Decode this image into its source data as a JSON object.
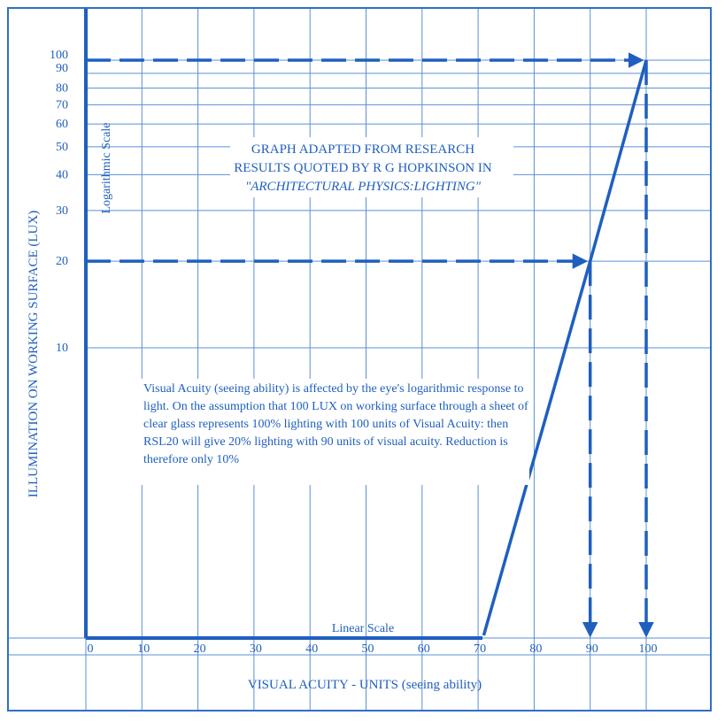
{
  "chart_data": {
    "type": "line",
    "title_lines": [
      "GRAPH ADAPTED FROM RESEARCH",
      "RESULTS QUOTED BY R G HOPKINSON IN",
      "\"ARCHITECTURAL PHYSICS:LIGHTING\""
    ],
    "xlabel": "VISUAL ACUITY - UNITS (seeing ability)",
    "ylabel": "ILLUMINATION ON WORKING SURFACE (LUX)",
    "x_scale_label": "Linear Scale",
    "y_scale_label": "Logarithmic Scale",
    "x_ticks": [
      "0",
      "10",
      "20",
      "30",
      "40",
      "50",
      "60",
      "70",
      "80",
      "90",
      "100"
    ],
    "y_ticks": [
      "100",
      "90",
      "80",
      "70",
      "60",
      "50",
      "40",
      "30",
      "20",
      "10"
    ],
    "xlim": [
      0,
      100
    ],
    "y_scale": "log",
    "series": [
      {
        "x": [
          71,
          90,
          100
        ],
        "y": [
          1,
          20,
          100
        ]
      }
    ],
    "annotations": {
      "dashed_paths": [
        {
          "from": [
            0,
            100
          ],
          "to": [
            100,
            100
          ],
          "down_to_x": 100
        },
        {
          "from": [
            0,
            20
          ],
          "to": [
            90,
            20
          ],
          "down_to_x": 90
        }
      ],
      "note": "Visual Acuity (seeing ability) is affected by the eye's logarithmic response to light. On the assumption that 100 LUX on working surface through a sheet of clear glass represents 100% lighting with 100 units of Visual Acuity: then RSL20 will give 20% lighting with 90 units of visual acuity. Reduction is therefore only 10%"
    },
    "grid": true,
    "color": "#1f5fbf"
  }
}
